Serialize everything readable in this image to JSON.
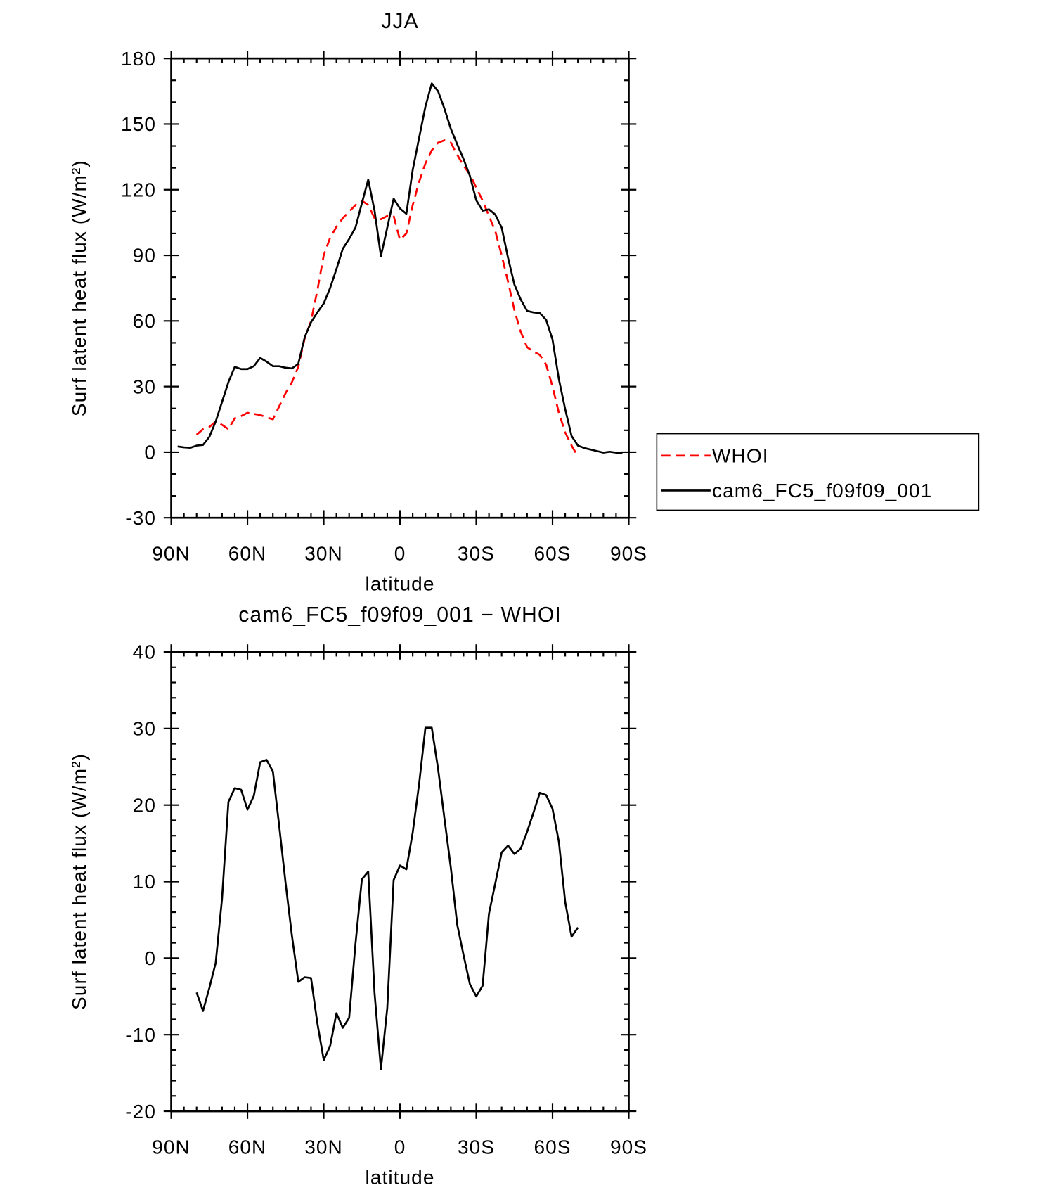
{
  "chart_data": [
    {
      "type": "line",
      "title": "JJA",
      "xlabel": "latitude",
      "ylabel": "Surf latent heat flux (W/m²)",
      "x": [
        87.5,
        85,
        82.5,
        80,
        77.5,
        75,
        72.5,
        70,
        67.5,
        65,
        62.5,
        60,
        57.5,
        55,
        52.5,
        50,
        47.5,
        45,
        42.5,
        40,
        37.5,
        35,
        32.5,
        30,
        27.5,
        25,
        22.5,
        20,
        17.5,
        15,
        12.5,
        10,
        7.5,
        5,
        2.5,
        0,
        -2.5,
        -5,
        -7.5,
        -10,
        -12.5,
        -15,
        -17.5,
        -20,
        -22.5,
        -25,
        -27.5,
        -30,
        -32.5,
        -35,
        -37.5,
        -40,
        -42.5,
        -45,
        -47.5,
        -50,
        -52.5,
        -55,
        -57.5,
        -60,
        -62.5,
        -65,
        -67.5,
        -70,
        -72.5,
        -75,
        -77.5,
        -80,
        -82.5,
        -85,
        -87.5
      ],
      "series": [
        {
          "name": "WHOI",
          "color": "#ff0000",
          "dashed": true,
          "values": [
            null,
            null,
            null,
            8,
            10.5,
            11.5,
            14,
            12.5,
            10.5,
            15.5,
            16.5,
            18,
            17.5,
            17,
            16,
            15,
            21,
            27,
            32,
            39,
            52,
            60,
            74,
            90,
            98,
            103,
            107,
            110,
            113,
            115,
            113,
            107,
            106.5,
            108,
            108,
            97,
            100,
            113,
            123.5,
            132,
            138,
            141.5,
            142.6,
            141.5,
            136,
            131,
            127,
            121,
            115,
            108,
            101,
            90,
            78,
            65,
            55,
            48,
            46,
            44.5,
            40,
            30,
            18,
            9,
            3,
            -2,
            null,
            null,
            null,
            null,
            null,
            null,
            null
          ]
        },
        {
          "name": "cam6_FC5_f09f09_001",
          "color": "#000000",
          "dashed": false,
          "values": [
            2.6,
            2.2,
            2,
            3,
            3.3,
            7,
            14,
            23,
            32,
            39,
            38,
            38,
            39.3,
            43.1,
            41.4,
            39.3,
            39.3,
            38.6,
            38.3,
            40.4,
            52.5,
            59.4,
            63.9,
            68,
            75,
            83.7,
            93,
            97.5,
            102.7,
            113.8,
            124.6,
            110.4,
            89.6,
            102.7,
            115.9,
            111.4,
            109,
            129,
            143.6,
            158,
            168.6,
            165,
            157,
            147.8,
            140.8,
            134,
            126.3,
            115.2,
            110.4,
            111,
            108.6,
            102.7,
            88.9,
            76.7,
            69.8,
            64.6,
            63.9,
            63.6,
            60.5,
            51.5,
            33.4,
            19.6,
            7.4,
            3,
            1.9,
            1.2,
            0.5,
            -0.2,
            0.2,
            -0.2,
            -0.5
          ]
        }
      ],
      "xlim": [
        90,
        -90
      ],
      "xticks": [
        {
          "value": 90,
          "label": "90N"
        },
        {
          "value": 60,
          "label": "60N"
        },
        {
          "value": 30,
          "label": "30N"
        },
        0,
        {
          "value": -30,
          "label": "30S"
        },
        {
          "value": -60,
          "label": "60S"
        },
        {
          "value": -90,
          "label": "90S"
        }
      ],
      "ylim": [
        -30,
        180
      ],
      "yticks": [
        -30,
        0,
        30,
        60,
        90,
        120,
        150,
        180
      ],
      "legend": "outside-right"
    },
    {
      "type": "line",
      "title": "cam6_FC5_f09f09_001 − WHOI",
      "xlabel": "latitude",
      "ylabel": "Surf latent heat flux (W/m²)",
      "x": [
        87.5,
        85,
        82.5,
        80,
        77.5,
        75,
        72.5,
        70,
        67.5,
        65,
        62.5,
        60,
        57.5,
        55,
        52.5,
        50,
        47.5,
        45,
        42.5,
        40,
        37.5,
        35,
        32.5,
        30,
        27.5,
        25,
        22.5,
        20,
        17.5,
        15,
        12.5,
        10,
        7.5,
        5,
        2.5,
        0,
        -2.5,
        -5,
        -7.5,
        -10,
        -12.5,
        -15,
        -17.5,
        -20,
        -22.5,
        -25,
        -27.5,
        -30,
        -32.5,
        -35,
        -37.5,
        -40,
        -42.5,
        -45,
        -47.5,
        -50,
        -52.5,
        -55,
        -57.5,
        -60,
        -62.5,
        -65,
        -67.5,
        -70,
        -72.5,
        -75,
        -77.5,
        -80,
        -82.5,
        -85,
        -87.5
      ],
      "series": [
        {
          "color": "#000000",
          "dashed": false,
          "values": [
            null,
            null,
            null,
            -4.5,
            -6.9,
            -3.9,
            -0.6,
            7.8,
            20.4,
            22.2,
            22,
            19.4,
            21.2,
            25.6,
            25.9,
            24.4,
            17.2,
            9.8,
            2.9,
            -3.1,
            -2.5,
            -2.6,
            -8.5,
            -13.3,
            -11.5,
            -7.2,
            -9.1,
            -7.8,
            1.9,
            10.3,
            11.3,
            -4.6,
            -14.5,
            -6.5,
            10.2,
            12.1,
            11.6,
            16.4,
            22.7,
            30.1,
            30.1,
            24.7,
            18.2,
            11.8,
            4.4,
            0.4,
            -3.4,
            -5,
            -3.6,
            5.8,
            9.8,
            13.8,
            14.7,
            13.6,
            14.3,
            16.5,
            19,
            21.6,
            21.3,
            19.5,
            15.2,
            7.3,
            2.8,
            4,
            null,
            null,
            null,
            null,
            null,
            null,
            null
          ]
        }
      ],
      "xlim": [
        90,
        -90
      ],
      "xticks": [
        {
          "value": 90,
          "label": "90N"
        },
        {
          "value": 60,
          "label": "60N"
        },
        {
          "value": 30,
          "label": "30N"
        },
        0,
        {
          "value": -30,
          "label": "30S"
        },
        {
          "value": -60,
          "label": "60S"
        },
        {
          "value": -90,
          "label": "90S"
        }
      ],
      "ylim": [
        -20,
        40
      ],
      "yticks": [
        -20,
        -10,
        0,
        10,
        20,
        30,
        40
      ]
    }
  ]
}
